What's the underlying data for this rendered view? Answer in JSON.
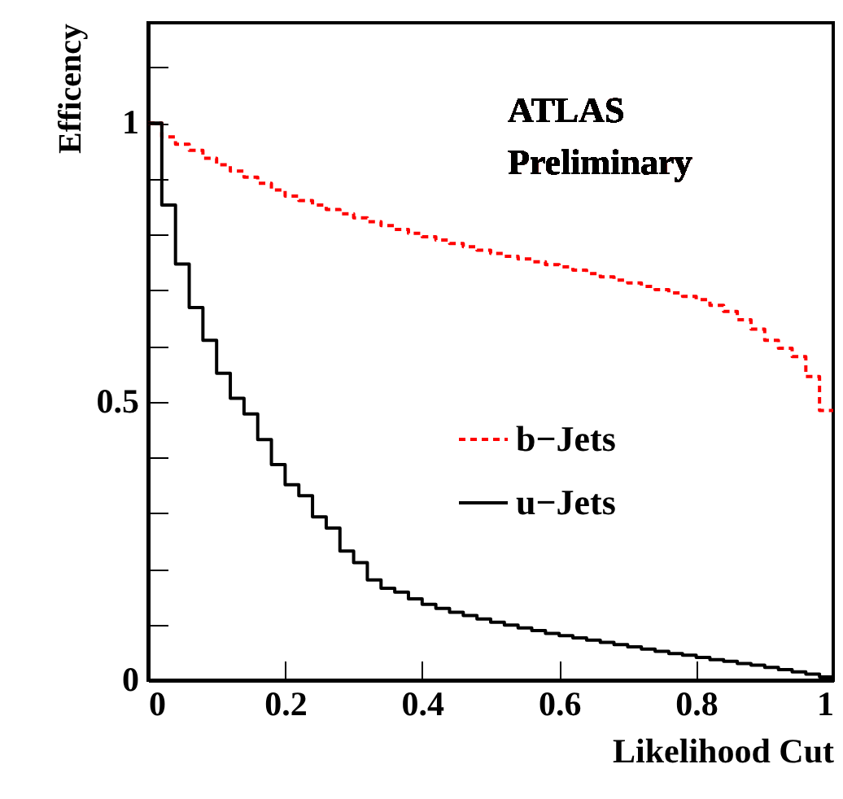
{
  "chart_data": {
    "type": "step",
    "x": [
      0,
      0.02,
      0.04,
      0.06,
      0.08,
      0.1,
      0.12,
      0.14,
      0.16,
      0.18,
      0.2,
      0.22,
      0.24,
      0.26,
      0.28,
      0.3,
      0.32,
      0.34,
      0.36,
      0.38,
      0.4,
      0.42,
      0.44,
      0.46,
      0.48,
      0.5,
      0.52,
      0.54,
      0.56,
      0.58,
      0.6,
      0.62,
      0.64,
      0.66,
      0.68,
      0.7,
      0.72,
      0.74,
      0.76,
      0.78,
      0.8,
      0.82,
      0.84,
      0.86,
      0.88,
      0.9,
      0.92,
      0.94,
      0.96,
      0.98,
      1
    ],
    "series": [
      {
        "name": "b−Jets",
        "color": "#ff0000",
        "line_style": "dashed",
        "values": [
          1.0,
          0.975,
          0.962,
          0.951,
          0.937,
          0.925,
          0.914,
          0.903,
          0.892,
          0.88,
          0.869,
          0.861,
          0.853,
          0.845,
          0.837,
          0.83,
          0.823,
          0.816,
          0.809,
          0.802,
          0.796,
          0.79,
          0.784,
          0.778,
          0.772,
          0.766,
          0.761,
          0.756,
          0.751,
          0.746,
          0.742,
          0.736,
          0.73,
          0.724,
          0.718,
          0.713,
          0.707,
          0.701,
          0.695,
          0.689,
          0.683,
          0.673,
          0.662,
          0.647,
          0.63,
          0.61,
          0.596,
          0.581,
          0.545,
          0.484,
          0.484
        ]
      },
      {
        "name": "u−Jets",
        "color": "#000000",
        "line_style": "solid",
        "values": [
          1.0,
          0.853,
          0.747,
          0.669,
          0.61,
          0.551,
          0.506,
          0.478,
          0.432,
          0.387,
          0.351,
          0.331,
          0.293,
          0.273,
          0.232,
          0.211,
          0.18,
          0.165,
          0.158,
          0.146,
          0.136,
          0.129,
          0.122,
          0.116,
          0.11,
          0.104,
          0.099,
          0.094,
          0.089,
          0.084,
          0.08,
          0.076,
          0.072,
          0.068,
          0.064,
          0.06,
          0.056,
          0.052,
          0.048,
          0.045,
          0.041,
          0.037,
          0.034,
          0.03,
          0.027,
          0.023,
          0.019,
          0.015,
          0.011,
          0.006,
          0.006
        ]
      }
    ],
    "xlabel": "Likelihood Cut",
    "ylabel": "Efficency",
    "xlim": [
      0,
      1
    ],
    "ylim": [
      0,
      1.18
    ],
    "xticks": [
      0,
      0.2,
      0.4,
      0.6,
      0.8,
      1
    ],
    "yticks": [
      0,
      {
        "value": 0.1,
        "label": null
      },
      {
        "value": 0.2,
        "label": null
      },
      {
        "value": 0.3,
        "label": null
      },
      {
        "value": 0.4,
        "label": null
      },
      0.5,
      {
        "value": 0.6,
        "label": null
      },
      {
        "value": 0.7,
        "label": null
      },
      {
        "value": 0.8,
        "label": null
      },
      {
        "value": 0.9,
        "label": null
      },
      1,
      {
        "value": 1.1,
        "label": null
      }
    ],
    "annotations": [
      "ATLAS",
      "Preliminary"
    ],
    "legend": "right",
    "grid": false
  }
}
